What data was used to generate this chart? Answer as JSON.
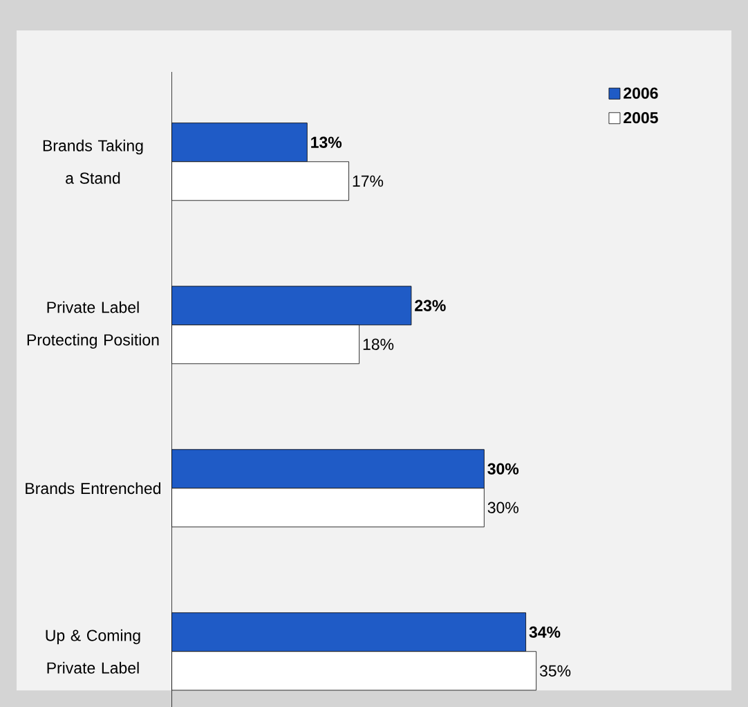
{
  "chart_data": {
    "type": "bar",
    "orientation": "horizontal",
    "categories": [
      "Brands Taking a Stand",
      "Private Label Protecting Position",
      "Brands Entrenched",
      "Up & Coming Private Label"
    ],
    "series": [
      {
        "name": "2006",
        "color": "#1f5bc6",
        "values": [
          13,
          23,
          30,
          34
        ],
        "value_labels": [
          "13%",
          "23%",
          "30%",
          "34%"
        ]
      },
      {
        "name": "2005",
        "color": "#ffffff",
        "values": [
          17,
          18,
          30,
          35
        ],
        "value_labels": [
          "17%",
          "18%",
          "30%",
          "35%"
        ]
      }
    ],
    "tick_labels": "y",
    "legend": "top right"
  }
}
